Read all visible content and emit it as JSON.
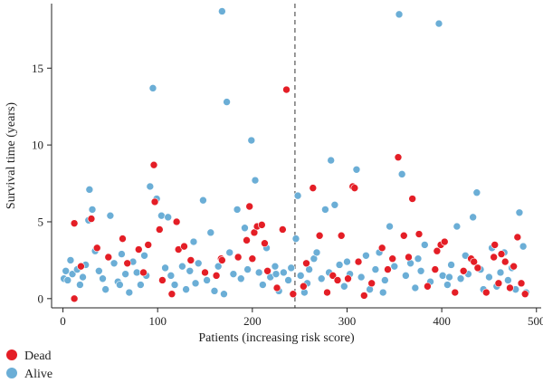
{
  "chart_data": {
    "type": "scatter",
    "title": "",
    "xlabel": "Patients (increasing risk score)",
    "ylabel": "Survival time (years)",
    "xlim": [
      -12,
      505
    ],
    "ylim": [
      -0.6,
      19.2
    ],
    "xticks": [
      0,
      100,
      200,
      300,
      400,
      500
    ],
    "yticks": [
      0,
      5,
      10,
      15
    ],
    "cutoff_x": 245,
    "cutoff_style": "dashed",
    "grid": false,
    "legend": {
      "placement": "bottom-left",
      "entries": [
        {
          "name": "Dead",
          "color": "#e41e26"
        },
        {
          "name": "Alive",
          "color": "#6baed6"
        }
      ]
    },
    "n_patients": 490,
    "series": [
      {
        "name": "Dead",
        "color": "#e41e26",
        "points": [
          [
            12,
            0.0
          ],
          [
            12,
            4.9
          ],
          [
            19,
            2.1
          ],
          [
            30,
            5.2
          ],
          [
            36,
            3.3
          ],
          [
            48,
            2.7
          ],
          [
            63,
            3.9
          ],
          [
            68,
            2.3
          ],
          [
            80,
            3.2
          ],
          [
            85,
            1.7
          ],
          [
            90,
            3.5
          ],
          [
            96,
            8.7
          ],
          [
            97,
            6.3
          ],
          [
            102,
            4.5
          ],
          [
            105,
            1.2
          ],
          [
            115,
            0.3
          ],
          [
            120,
            5.0
          ],
          [
            122,
            3.2
          ],
          [
            128,
            3.4
          ],
          [
            135,
            2.5
          ],
          [
            150,
            1.7
          ],
          [
            162,
            1.5
          ],
          [
            167,
            2.6
          ],
          [
            168,
            2.5
          ],
          [
            185,
            2.7
          ],
          [
            194,
            3.8
          ],
          [
            197,
            6.0
          ],
          [
            200,
            2.6
          ],
          [
            202,
            4.3
          ],
          [
            205,
            4.7
          ],
          [
            210,
            4.8
          ],
          [
            213,
            3.6
          ],
          [
            216,
            1.8
          ],
          [
            226,
            0.7
          ],
          [
            232,
            4.5
          ],
          [
            236,
            13.6
          ],
          [
            243,
            0.3
          ],
          [
            254,
            0.8
          ],
          [
            264,
            7.2
          ],
          [
            271,
            4.1
          ],
          [
            279,
            0.4
          ],
          [
            285,
            1.5
          ],
          [
            290,
            1.2
          ],
          [
            294,
            4.1
          ],
          [
            301,
            1.3
          ],
          [
            306,
            7.3
          ],
          [
            308,
            7.2
          ],
          [
            312,
            2.4
          ],
          [
            326,
            1.0
          ],
          [
            337,
            3.3
          ],
          [
            348,
            2.6
          ],
          [
            354,
            9.2
          ],
          [
            360,
            4.1
          ],
          [
            365,
            2.7
          ],
          [
            369,
            6.5
          ],
          [
            376,
            4.2
          ],
          [
            385,
            0.8
          ],
          [
            393,
            1.9
          ],
          [
            399,
            3.5
          ],
          [
            403,
            3.7
          ],
          [
            414,
            0.4
          ],
          [
            423,
            1.8
          ],
          [
            431,
            2.6
          ],
          [
            438,
            2.0
          ],
          [
            447,
            0.4
          ],
          [
            456,
            3.5
          ],
          [
            460,
            1.0
          ],
          [
            463,
            2.9
          ],
          [
            467,
            2.4
          ],
          [
            472,
            0.7
          ],
          [
            476,
            2.1
          ],
          [
            480,
            4.0
          ],
          [
            484,
            1.0
          ],
          [
            488,
            0.3
          ],
          [
            455,
            2.7
          ],
          [
            434,
            2.4
          ],
          [
            395,
            3.1
          ],
          [
            343,
            1.9
          ],
          [
            318,
            0.2
          ],
          [
            257,
            2.3
          ]
        ]
      },
      {
        "name": "Alive",
        "color": "#6baed6",
        "points": [
          [
            1,
            1.3
          ],
          [
            3,
            1.8
          ],
          [
            5,
            1.2
          ],
          [
            8,
            2.5
          ],
          [
            10,
            1.6
          ],
          [
            15,
            1.9
          ],
          [
            18,
            0.9
          ],
          [
            21,
            1.4
          ],
          [
            24,
            2.2
          ],
          [
            27,
            5.1
          ],
          [
            28,
            7.1
          ],
          [
            31,
            5.8
          ],
          [
            34,
            3.1
          ],
          [
            38,
            1.8
          ],
          [
            42,
            1.3
          ],
          [
            45,
            0.6
          ],
          [
            50,
            5.4
          ],
          [
            54,
            2.3
          ],
          [
            58,
            1.1
          ],
          [
            62,
            2.9
          ],
          [
            66,
            1.6
          ],
          [
            70,
            0.4
          ],
          [
            74,
            2.4
          ],
          [
            78,
            1.7
          ],
          [
            82,
            0.9
          ],
          [
            86,
            2.8
          ],
          [
            92,
            7.3
          ],
          [
            95,
            13.7
          ],
          [
            99,
            6.5
          ],
          [
            104,
            5.4
          ],
          [
            108,
            2.0
          ],
          [
            111,
            5.3
          ],
          [
            114,
            1.5
          ],
          [
            118,
            0.9
          ],
          [
            126,
            2.1
          ],
          [
            130,
            0.6
          ],
          [
            134,
            1.8
          ],
          [
            138,
            3.7
          ],
          [
            143,
            2.3
          ],
          [
            148,
            6.4
          ],
          [
            152,
            1.2
          ],
          [
            156,
            4.3
          ],
          [
            160,
            0.5
          ],
          [
            164,
            2.1
          ],
          [
            168,
            18.7
          ],
          [
            173,
            12.8
          ],
          [
            176,
            3.0
          ],
          [
            180,
            1.6
          ],
          [
            184,
            5.8
          ],
          [
            188,
            1.3
          ],
          [
            192,
            4.6
          ],
          [
            199,
            10.3
          ],
          [
            203,
            7.7
          ],
          [
            207,
            1.7
          ],
          [
            211,
            0.9
          ],
          [
            215,
            3.3
          ],
          [
            219,
            1.4
          ],
          [
            224,
            2.1
          ],
          [
            228,
            0.5
          ],
          [
            233,
            1.7
          ],
          [
            238,
            1.2
          ],
          [
            241,
            2.0
          ],
          [
            246,
            3.9
          ],
          [
            248,
            6.7
          ],
          [
            251,
            1.5
          ],
          [
            255,
            0.4
          ],
          [
            260,
            1.9
          ],
          [
            265,
            2.6
          ],
          [
            268,
            3.0
          ],
          [
            273,
            1.3
          ],
          [
            277,
            5.8
          ],
          [
            281,
            1.7
          ],
          [
            283,
            9.0
          ],
          [
            287,
            6.1
          ],
          [
            292,
            2.2
          ],
          [
            297,
            0.8
          ],
          [
            303,
            1.6
          ],
          [
            310,
            8.4
          ],
          [
            315,
            1.4
          ],
          [
            320,
            2.8
          ],
          [
            324,
            0.6
          ],
          [
            330,
            1.9
          ],
          [
            334,
            3.0
          ],
          [
            340,
            1.2
          ],
          [
            345,
            4.7
          ],
          [
            350,
            2.1
          ],
          [
            355,
            18.5
          ],
          [
            358,
            8.1
          ],
          [
            362,
            1.5
          ],
          [
            367,
            2.3
          ],
          [
            372,
            0.7
          ],
          [
            378,
            1.8
          ],
          [
            382,
            3.5
          ],
          [
            388,
            1.1
          ],
          [
            397,
            17.9
          ],
          [
            401,
            1.5
          ],
          [
            406,
            0.9
          ],
          [
            410,
            2.2
          ],
          [
            416,
            4.7
          ],
          [
            420,
            1.3
          ],
          [
            425,
            2.8
          ],
          [
            428,
            1.6
          ],
          [
            433,
            5.3
          ],
          [
            437,
            6.9
          ],
          [
            441,
            1.9
          ],
          [
            444,
            0.6
          ],
          [
            450,
            1.4
          ],
          [
            453,
            3.3
          ],
          [
            458,
            0.8
          ],
          [
            462,
            1.7
          ],
          [
            466,
            3.0
          ],
          [
            470,
            1.2
          ],
          [
            474,
            2.0
          ],
          [
            478,
            0.6
          ],
          [
            482,
            5.6
          ],
          [
            486,
            3.4
          ],
          [
            489,
            0.4
          ],
          [
            60,
            0.9
          ],
          [
            88,
            1.5
          ],
          [
            140,
            1.0
          ],
          [
            170,
            0.3
          ],
          [
            195,
            1.9
          ],
          [
            225,
            1.6
          ],
          [
            258,
            1.0
          ],
          [
            300,
            2.4
          ],
          [
            338,
            0.4
          ],
          [
            375,
            2.6
          ],
          [
            408,
            1.4
          ]
        ]
      }
    ]
  }
}
